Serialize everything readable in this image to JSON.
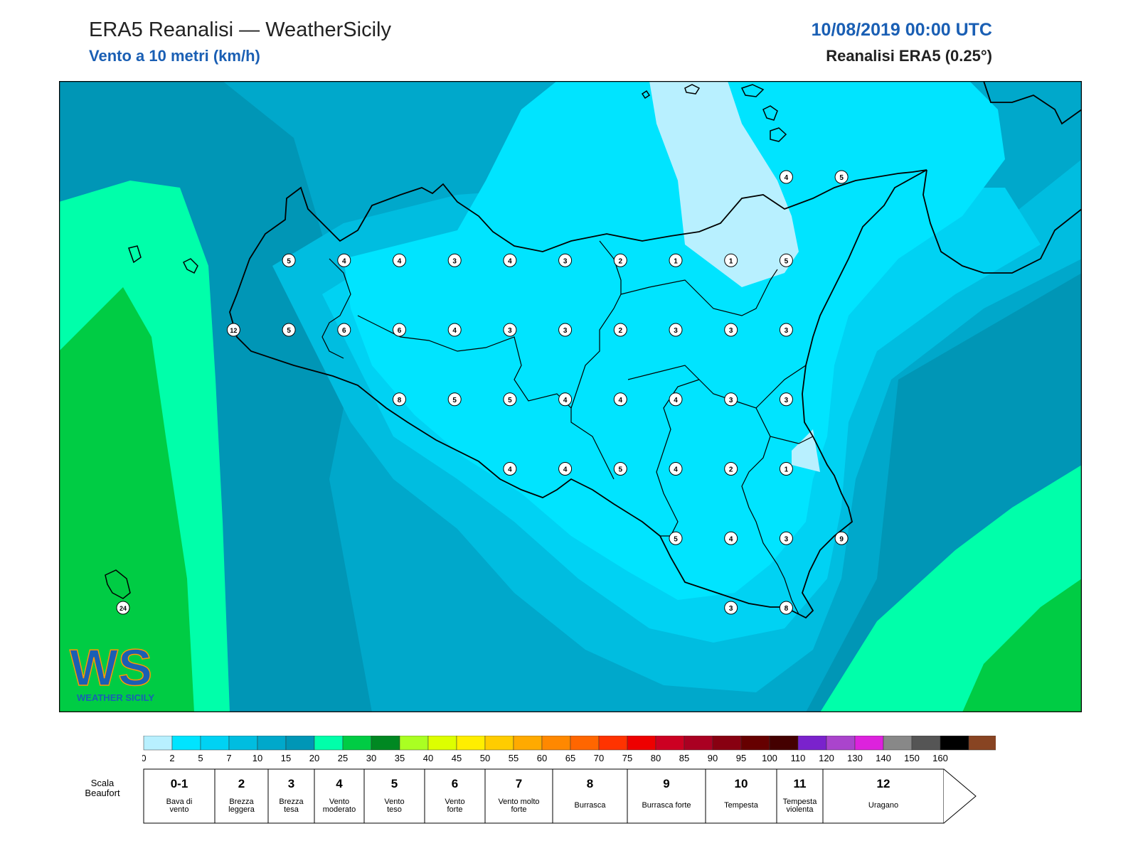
{
  "header": {
    "title": "ERA5 Reanalisi — WeatherSicily",
    "subtitle": "Vento a 10 metri (km/h)",
    "datetime": "10/08/2019 00:00 UTC",
    "model": "Reanalisi ERA5 (0.25°)"
  },
  "logo": {
    "text": "WS",
    "subtext": "WEATHER SICILY"
  },
  "station_values": [
    {
      "v": "5",
      "lon": 12.6,
      "lat": 38.2
    },
    {
      "v": "4",
      "lon": 13.1,
      "lat": 38.2
    },
    {
      "v": "4",
      "lon": 13.6,
      "lat": 38.2
    },
    {
      "v": "3",
      "lon": 14.1,
      "lat": 38.2
    },
    {
      "v": "4",
      "lon": 14.6,
      "lat": 38.2
    },
    {
      "v": "3",
      "lon": 15.1,
      "lat": 38.2
    },
    {
      "v": "2",
      "lon": 15.6,
      "lat": 38.2
    },
    {
      "v": "1",
      "lon": 16.1,
      "lat": 38.2
    },
    {
      "v": "1",
      "lon": 16.6,
      "lat": 38.2
    },
    {
      "v": "5",
      "lon": 17.1,
      "lat": 38.2
    },
    {
      "v": "4",
      "lon": 17.1,
      "lat": 38.8
    },
    {
      "v": "5",
      "lon": 17.6,
      "lat": 38.8
    },
    {
      "v": "12",
      "lon": 12.1,
      "lat": 37.7
    },
    {
      "v": "5",
      "lon": 12.6,
      "lat": 37.7
    },
    {
      "v": "6",
      "lon": 13.1,
      "lat": 37.7
    },
    {
      "v": "6",
      "lon": 13.6,
      "lat": 37.7
    },
    {
      "v": "4",
      "lon": 14.1,
      "lat": 37.7
    },
    {
      "v": "3",
      "lon": 14.6,
      "lat": 37.7
    },
    {
      "v": "3",
      "lon": 15.1,
      "lat": 37.7
    },
    {
      "v": "2",
      "lon": 15.6,
      "lat": 37.7
    },
    {
      "v": "3",
      "lon": 16.1,
      "lat": 37.7
    },
    {
      "v": "3",
      "lon": 16.6,
      "lat": 37.7
    },
    {
      "v": "3",
      "lon": 17.1,
      "lat": 37.7
    },
    {
      "v": "8",
      "lon": 13.6,
      "lat": 37.2
    },
    {
      "v": "5",
      "lon": 14.1,
      "lat": 37.2
    },
    {
      "v": "5",
      "lon": 14.6,
      "lat": 37.2
    },
    {
      "v": "4",
      "lon": 15.1,
      "lat": 37.2
    },
    {
      "v": "4",
      "lon": 15.6,
      "lat": 37.2
    },
    {
      "v": "4",
      "lon": 16.1,
      "lat": 37.2
    },
    {
      "v": "3",
      "lon": 16.6,
      "lat": 37.2
    },
    {
      "v": "3",
      "lon": 17.1,
      "lat": 37.2
    },
    {
      "v": "4",
      "lon": 14.6,
      "lat": 36.7
    },
    {
      "v": "4",
      "lon": 15.1,
      "lat": 36.7
    },
    {
      "v": "5",
      "lon": 15.6,
      "lat": 36.7
    },
    {
      "v": "4",
      "lon": 16.1,
      "lat": 36.7
    },
    {
      "v": "2",
      "lon": 16.6,
      "lat": 36.7
    },
    {
      "v": "1",
      "lon": 17.1,
      "lat": 36.7
    },
    {
      "v": "5",
      "lon": 16.1,
      "lat": 36.2
    },
    {
      "v": "4",
      "lon": 16.6,
      "lat": 36.2
    },
    {
      "v": "3",
      "lon": 17.1,
      "lat": 36.2
    },
    {
      "v": "9",
      "lon": 17.6,
      "lat": 36.2
    },
    {
      "v": "3",
      "lon": 16.6,
      "lat": 35.7
    },
    {
      "v": "8",
      "lon": 17.1,
      "lat": 35.7
    },
    {
      "v": "24",
      "lon": 11.1,
      "lat": 35.7
    }
  ],
  "colorbar": {
    "colors": [
      "#b8f0ff",
      "#00e4ff",
      "#00d2f3",
      "#00bde0",
      "#00a8cb",
      "#0096b6",
      "#00ffaa",
      "#00cc44",
      "#008822",
      "#aaff22",
      "#ddff00",
      "#ffee00",
      "#ffcc00",
      "#ffaa00",
      "#ff8800",
      "#ff6600",
      "#ff3300",
      "#ee0000",
      "#cc0022",
      "#aa0022",
      "#880011",
      "#660000",
      "#440000",
      "#7a22cc",
      "#aa44cc",
      "#dd22dd",
      "#888888",
      "#555555",
      "#000000",
      "#884422",
      "#cc8844"
    ],
    "ticks": [
      "0",
      "2",
      "5",
      "7",
      "10",
      "15",
      "20",
      "25",
      "30",
      "35",
      "40",
      "45",
      "50",
      "55",
      "60",
      "65",
      "70",
      "75",
      "80",
      "85",
      "90",
      "95",
      "100",
      "110",
      "120",
      "130",
      "140",
      "150",
      "160"
    ]
  },
  "beaufort": {
    "label": "Scala Beaufort",
    "cells": [
      {
        "num": "0-1",
        "desc": "Bava di vento"
      },
      {
        "num": "2",
        "desc": "Brezza leggera"
      },
      {
        "num": "3",
        "desc": "Brezza tesa"
      },
      {
        "num": "4",
        "desc": "Vento moderato"
      },
      {
        "num": "5",
        "desc": "Vento teso"
      },
      {
        "num": "6",
        "desc": "Vento forte"
      },
      {
        "num": "7",
        "desc": "Vento molto forte"
      },
      {
        "num": "8",
        "desc": "Burrasca"
      },
      {
        "num": "9",
        "desc": "Burrasca forte"
      },
      {
        "num": "10",
        "desc": "Tempesta"
      },
      {
        "num": "11",
        "desc": "Tempesta violenta"
      },
      {
        "num": "12",
        "desc": "Uragano"
      }
    ]
  }
}
